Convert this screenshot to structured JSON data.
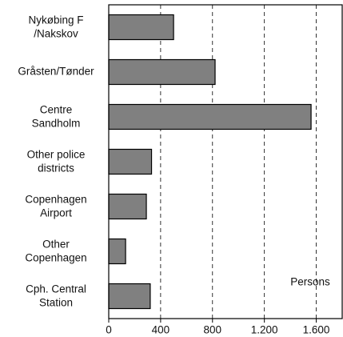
{
  "chart_data": {
    "type": "bar",
    "orientation": "horizontal",
    "categories": [
      "Nykøbing F\n/Nakskov",
      "Gråsten/Tønder",
      "Centre\nSandholm",
      "Other police\ndistricts",
      "Copenhagen\nAirport",
      "Other\nCopenhagen",
      "Cph. Central\nStation"
    ],
    "values": [
      500,
      820,
      1560,
      330,
      290,
      130,
      320
    ],
    "color": "#808080",
    "xlim": [
      0,
      1800
    ],
    "xticks": [
      0,
      400,
      800,
      {
        "value": 1200,
        "label": "1.200"
      },
      {
        "value": 1600,
        "label": "1.600"
      }
    ],
    "grid": true,
    "annotation": "Persons"
  }
}
